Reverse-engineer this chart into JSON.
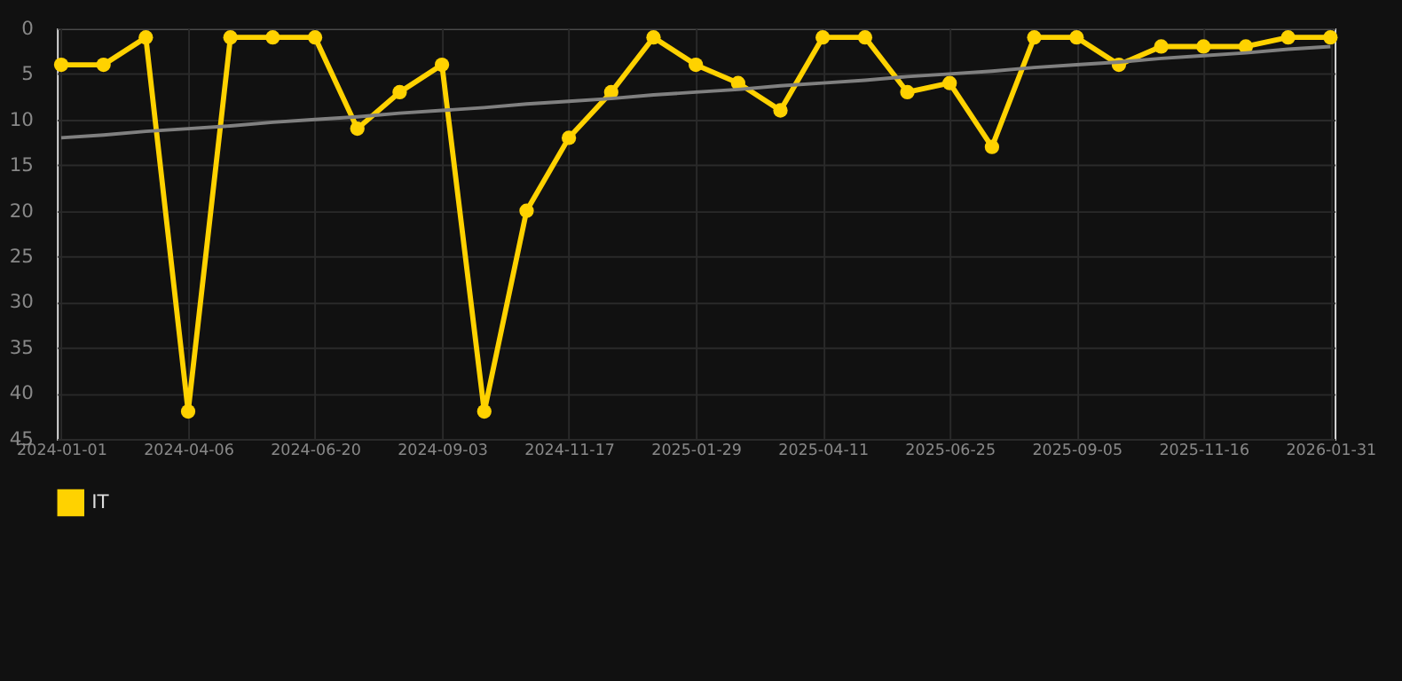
{
  "chart_data": {
    "type": "line",
    "categories": [
      "2024-01-01",
      null,
      null,
      "2024-04-06",
      null,
      null,
      "2024-06-20",
      null,
      null,
      "2024-09-03",
      null,
      null,
      "2024-11-17",
      null,
      null,
      "2025-01-29",
      null,
      null,
      "2025-04-11",
      null,
      null,
      "2025-06-25",
      null,
      null,
      "2025-09-05",
      null,
      null,
      "2025-11-16",
      null,
      null,
      "2026-01-31"
    ],
    "series": [
      {
        "name": "IT",
        "color": "#ffd200",
        "marker": "circle",
        "values": [
          4,
          4,
          1,
          42,
          1,
          1,
          1,
          11,
          7,
          4,
          42,
          20,
          12,
          7,
          1,
          4,
          6,
          9,
          1,
          1,
          7,
          6,
          13,
          1,
          1,
          4,
          2,
          2,
          2,
          1,
          1
        ]
      },
      {
        "type": "line",
        "color": "#808080",
        "marker": "none",
        "values": [
          12.0,
          11.7,
          11.3,
          11.0,
          10.7,
          10.3,
          10.0,
          9.7,
          9.3,
          9.0,
          8.7,
          8.3,
          8.0,
          7.7,
          7.3,
          7.0,
          6.7,
          6.3,
          6.0,
          5.7,
          5.3,
          5.0,
          4.7,
          4.3,
          4.0,
          3.7,
          3.3,
          3.0,
          2.7,
          2.3,
          2.0
        ]
      }
    ],
    "ylim": [
      45,
      0
    ],
    "yticks": [
      0,
      5,
      10,
      15,
      20,
      25,
      30,
      35,
      40,
      45
    ],
    "grid": true,
    "legend": "bottom"
  }
}
